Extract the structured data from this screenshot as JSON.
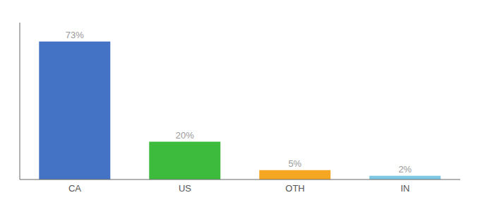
{
  "chart_data": {
    "type": "bar",
    "categories": [
      "CA",
      "US",
      "OTH",
      "IN"
    ],
    "values": [
      73,
      20,
      5,
      2
    ],
    "value_labels": [
      "73%",
      "20%",
      "5%",
      "2%"
    ],
    "colors": [
      "#4472c4",
      "#3dbb3d",
      "#f5a623",
      "#7ec8e3"
    ],
    "ylim": [
      0,
      83
    ],
    "data_labels": true,
    "tick_labels": "x",
    "grid": false
  }
}
